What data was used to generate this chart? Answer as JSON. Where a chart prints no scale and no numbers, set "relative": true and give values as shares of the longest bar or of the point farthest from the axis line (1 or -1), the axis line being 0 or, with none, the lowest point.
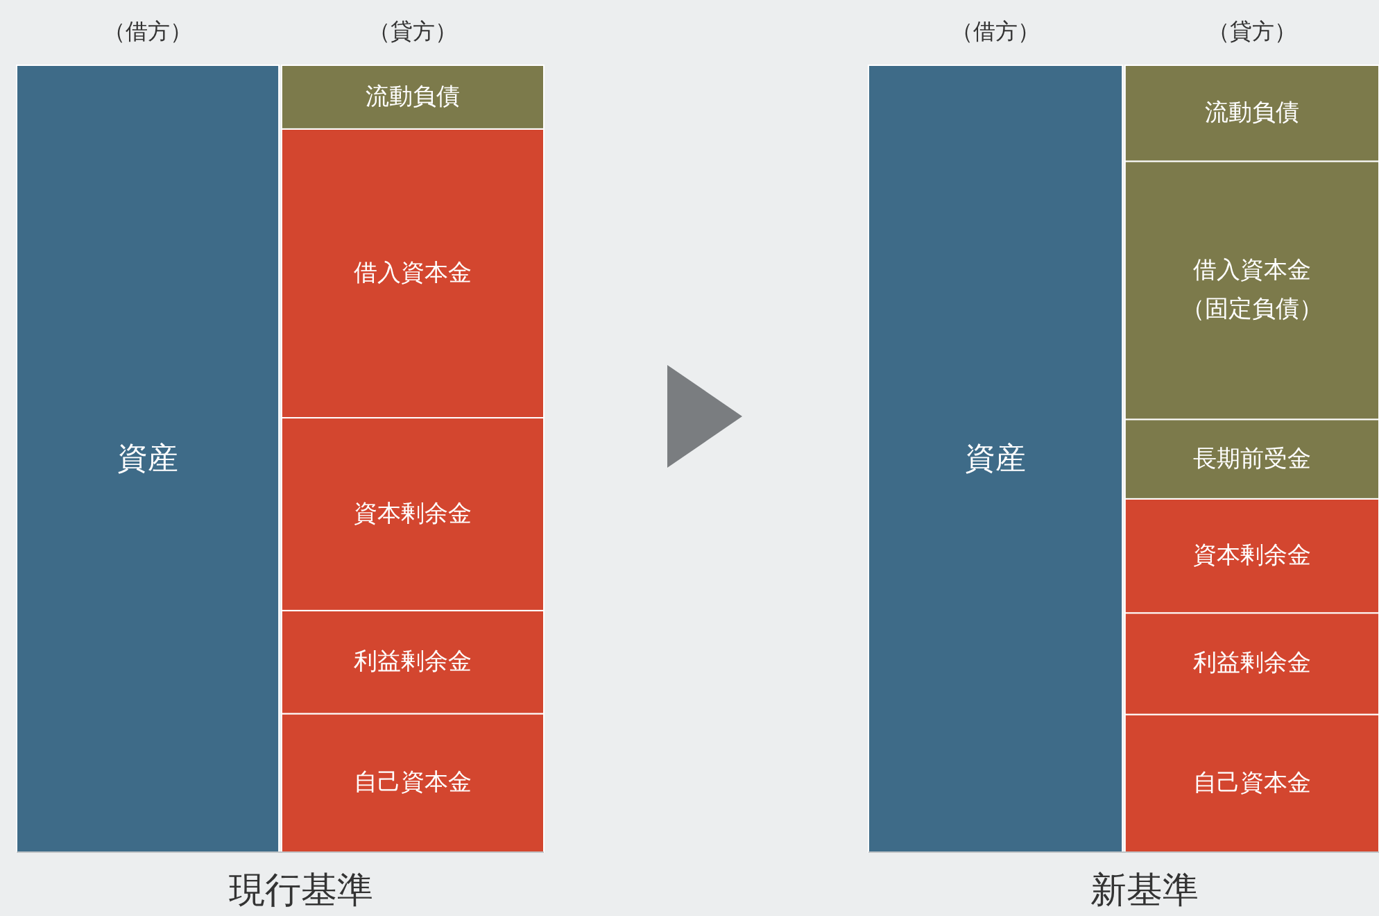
{
  "chart_data": [
    {
      "type": "bar",
      "title": "現行基準",
      "categories": [
        "（借方）",
        "（貸方）"
      ],
      "stacked": true,
      "relative": true,
      "legend": false,
      "series": [
        {
          "name": "資産",
          "color": "#3e6b88",
          "values": [
            1,
            null
          ]
        },
        {
          "name": "自己資本金",
          "color": "#d3462f",
          "values": [
            null,
            0.176
          ]
        },
        {
          "name": "利益剰余金",
          "color": "#d3462f",
          "values": [
            null,
            0.131
          ]
        },
        {
          "name": "資本剰余金",
          "color": "#d3462f",
          "values": [
            null,
            0.245
          ]
        },
        {
          "name": "借入資本金",
          "color": "#d3462f",
          "values": [
            null,
            0.367
          ]
        },
        {
          "name": "流動負債",
          "color": "#7c7a4b",
          "values": [
            null,
            0.081
          ]
        }
      ]
    },
    {
      "type": "bar",
      "title": "新基準",
      "categories": [
        "（借方）",
        "（貸方）"
      ],
      "stacked": true,
      "relative": true,
      "legend": false,
      "series": [
        {
          "name": "資産",
          "color": "#3e6b88",
          "values": [
            1,
            null
          ]
        },
        {
          "name": "自己資本金",
          "color": "#d3462f",
          "values": [
            null,
            0.175
          ]
        },
        {
          "name": "利益剰余金",
          "color": "#d3462f",
          "values": [
            null,
            0.129
          ]
        },
        {
          "name": "資本剰余金",
          "color": "#d3462f",
          "values": [
            null,
            0.145
          ]
        },
        {
          "name": "長期前受金",
          "color": "#7c7a4b",
          "values": [
            null,
            0.101
          ]
        },
        {
          "name": "借入資本金（固定負債）",
          "color": "#7c7a4b",
          "values": [
            null,
            0.328
          ]
        },
        {
          "name": "流動負債",
          "color": "#7c7a4b",
          "values": [
            null,
            0.122
          ]
        }
      ]
    }
  ]
}
